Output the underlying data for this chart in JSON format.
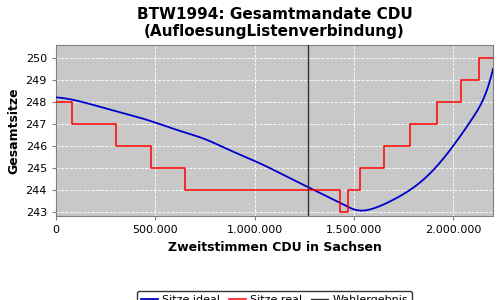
{
  "title": "BTW1994: Gesamtmandate CDU\n(AufloesungListenverbindung)",
  "xlabel": "Zweitstimmen CDU in Sachsen",
  "ylabel": "Gesamtsitze",
  "xlim": [
    0,
    2200000
  ],
  "ylim": [
    242.8,
    250.6
  ],
  "yticks": [
    243,
    244,
    245,
    246,
    247,
    248,
    249,
    250
  ],
  "xticks": [
    0,
    500000,
    1000000,
    1500000,
    2000000
  ],
  "xticklabels": [
    "0",
    "500.000",
    "1.000.000",
    "1.500.000",
    "2.000.000"
  ],
  "wahlergebnis_x": 1270000,
  "fig_facecolor": "#ffffff",
  "plot_facecolor": "#c8c8c8",
  "ideal_color": "#0000cc",
  "real_color": "#ff0000",
  "wahlergebnis_color": "#333333",
  "legend_labels": [
    "Sitze real",
    "Sitze ideal",
    "Wahlergebnis"
  ],
  "title_fontsize": 11,
  "axis_label_fontsize": 9,
  "tick_fontsize": 8,
  "legend_fontsize": 8,
  "ideal_x": [
    0,
    50000,
    150000,
    250000,
    350000,
    450000,
    550000,
    650000,
    750000,
    850000,
    950000,
    1050000,
    1150000,
    1250000,
    1350000,
    1450000,
    1500000,
    1550000,
    1600000,
    1700000,
    1800000,
    1900000,
    2000000,
    2100000,
    2150000,
    2200000
  ],
  "ideal_y": [
    248.2,
    248.15,
    247.95,
    247.7,
    247.45,
    247.2,
    246.9,
    246.6,
    246.3,
    245.9,
    245.5,
    245.1,
    244.65,
    244.2,
    243.75,
    243.3,
    243.1,
    243.05,
    243.15,
    243.55,
    244.1,
    244.9,
    246.0,
    247.3,
    248.1,
    249.5
  ],
  "real_x": [
    0,
    80000,
    80000,
    300000,
    300000,
    480000,
    480000,
    650000,
    650000,
    870000,
    870000,
    1100000,
    1100000,
    1380000,
    1380000,
    1430000,
    1430000,
    1470000,
    1470000,
    1530000,
    1530000,
    1650000,
    1650000,
    1780000,
    1780000,
    1920000,
    1920000,
    2040000,
    2040000,
    2130000,
    2130000,
    2200000
  ],
  "real_y": [
    248,
    248,
    247,
    247,
    246,
    246,
    245,
    245,
    244,
    244,
    244,
    244,
    244,
    244,
    244,
    244,
    243,
    243,
    244,
    244,
    245,
    245,
    246,
    246,
    247,
    247,
    248,
    248,
    249,
    249,
    250,
    250
  ]
}
